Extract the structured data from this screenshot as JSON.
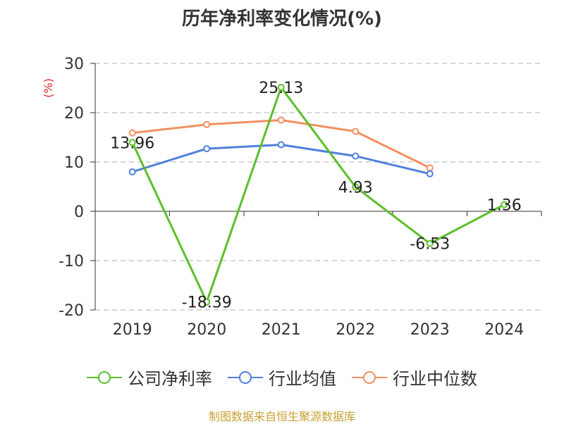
{
  "title": "历年净利率变化情况(%)",
  "source_note": "制图数据来自恒生聚源数据库",
  "colors": {
    "company": "#5cbf2a",
    "industry_avg": "#4f7fdc",
    "industry_median": "#f49060",
    "axis": "#333333",
    "grid": "#cccccc",
    "unit_label": "#e02020"
  },
  "chart_data": {
    "type": "line",
    "title": "历年净利率变化情况(%)",
    "ylabel": "(%)",
    "ylim": [
      -20,
      30
    ],
    "yticks": [
      "30",
      "20",
      "10",
      "0",
      "-10",
      "-20"
    ],
    "categories": [
      "2019",
      "2020",
      "2021",
      "2022",
      "2023",
      "2024"
    ],
    "grid": true,
    "legend_position": "bottom",
    "series": [
      {
        "name": "公司净利率",
        "values": [
          13.96,
          -18.39,
          25.13,
          4.93,
          -6.53,
          1.36
        ],
        "labels": [
          "13.96",
          "-18.39",
          "25.13",
          "4.93",
          "-6.53",
          "1.36"
        ],
        "color": "#5cbf2a"
      },
      {
        "name": "行业均值",
        "values": [
          8.0,
          12.7,
          13.5,
          11.2,
          7.6,
          null
        ],
        "color": "#4f7fdc"
      },
      {
        "name": "行业中位数",
        "values": [
          15.9,
          17.6,
          18.5,
          16.2,
          8.8,
          null
        ],
        "color": "#f49060"
      }
    ]
  }
}
